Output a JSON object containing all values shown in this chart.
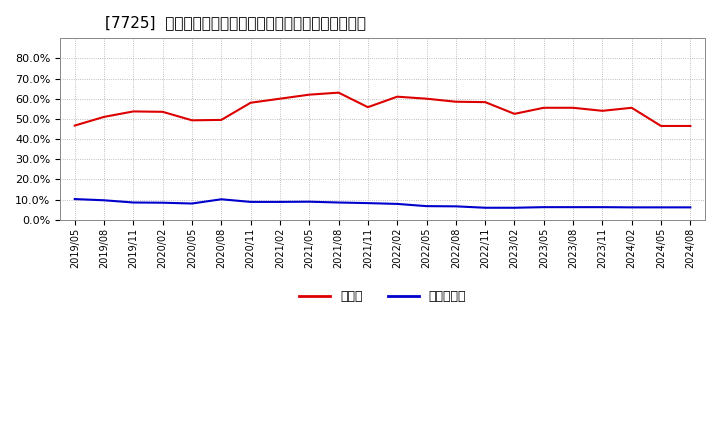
{
  "title": "[7725]  現預金、有利子負債の総資産に対する比率の推移",
  "x_labels": [
    "2019/05",
    "2019/08",
    "2019/11",
    "2020/02",
    "2020/05",
    "2020/08",
    "2020/11",
    "2021/02",
    "2021/05",
    "2021/08",
    "2021/11",
    "2022/02",
    "2022/05",
    "2022/08",
    "2022/11",
    "2023/02",
    "2023/05",
    "2023/08",
    "2023/11",
    "2024/02",
    "2024/05",
    "2024/08"
  ],
  "cash_vals": [
    0.467,
    0.51,
    0.537,
    0.535,
    0.493,
    0.495,
    0.58,
    0.6,
    0.62,
    0.63,
    0.558,
    0.61,
    0.6,
    0.585,
    0.583,
    0.525,
    0.555,
    0.555,
    0.54,
    0.555,
    0.465,
    0.465
  ],
  "debt_vals": [
    0.103,
    0.097,
    0.086,
    0.085,
    0.081,
    0.102,
    0.089,
    0.089,
    0.09,
    0.086,
    0.083,
    0.079,
    0.068,
    0.067,
    0.06,
    0.06,
    0.063,
    0.063,
    0.063,
    0.062,
    0.062,
    0.062
  ],
  "cash_color": "#dd0000",
  "debt_color": "#0000cc",
  "background_color": "#ffffff",
  "grid_color": "#aaaaaa",
  "ylim": [
    0.0,
    0.9
  ],
  "yticks": [
    0.0,
    0.1,
    0.2,
    0.3,
    0.4,
    0.5,
    0.6,
    0.7,
    0.8
  ],
  "legend_cash": "現預金",
  "legend_debt": "有利子負債",
  "title_fontsize": 11
}
